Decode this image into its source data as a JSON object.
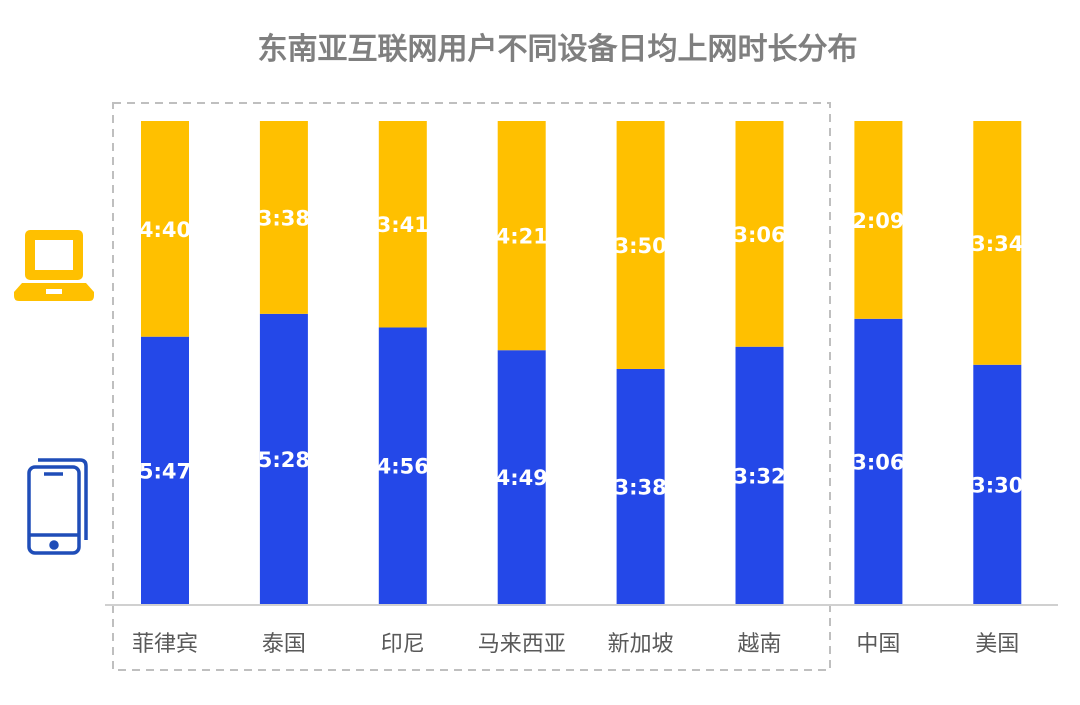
{
  "chart_data": {
    "type": "bar",
    "stacked": "100%",
    "title": "东南亚互联网用户不同设备日均上网时长分布",
    "categories": [
      "菲律宾",
      "泰国",
      "印尼",
      "马来西亚",
      "新加坡",
      "越南",
      "中国",
      "美国"
    ],
    "series": [
      {
        "icon": "mobile-phone-icon",
        "color": "#2448E8",
        "values": [
          "5:47",
          "5:28",
          "4:56",
          "4:49",
          "3:38",
          "3:32",
          "3:06",
          "3:30"
        ]
      },
      {
        "icon": "laptop-icon",
        "color": "#FFC000",
        "values": [
          "4:40",
          "3:38",
          "3:41",
          "4:21",
          "3:50",
          "3:06",
          "2:09",
          "3:34"
        ]
      }
    ],
    "highlight_group": [
      "菲律宾",
      "泰国",
      "印尼",
      "马来西亚",
      "新加坡",
      "越南"
    ],
    "grid": false
  }
}
